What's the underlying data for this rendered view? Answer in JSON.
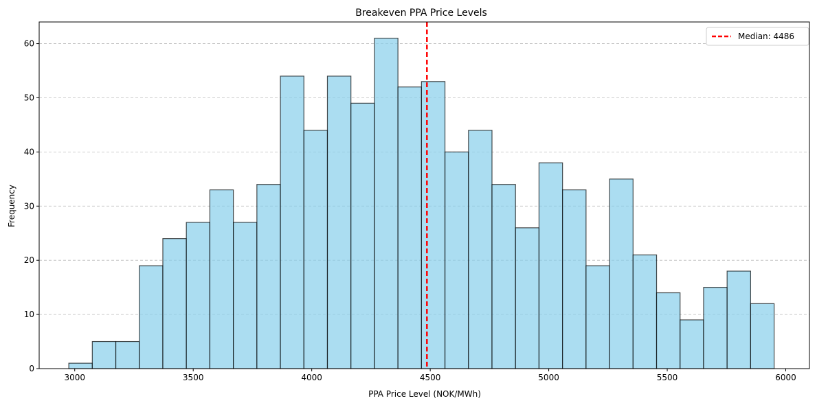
{
  "chart_data": {
    "type": "bar",
    "title": "Breakeven PPA Price Levels",
    "xlabel": "PPA Price Level (NOK/MWh)",
    "ylabel": "Frequency",
    "xlim": [
      2850,
      6100
    ],
    "ylim": [
      0,
      64
    ],
    "xticks": [
      3000,
      3500,
      4000,
      4500,
      5000,
      5500,
      6000
    ],
    "yticks": [
      0,
      10,
      20,
      30,
      40,
      50,
      60
    ],
    "grid": "y-dashed",
    "legend": {
      "position": "top-right",
      "label": "Median: 4486"
    },
    "median": 4486,
    "bin_start": 2975,
    "bin_width": 99.2,
    "counts": [
      1,
      5,
      5,
      19,
      24,
      27,
      33,
      27,
      34,
      54,
      44,
      54,
      49,
      61,
      52,
      53,
      40,
      44,
      34,
      26,
      38,
      33,
      19,
      35,
      21,
      14,
      9,
      15,
      18,
      12
    ],
    "colors": {
      "bar_fill": "#87ceeb",
      "bar_edge": "#000000",
      "median_line": "#ff0000"
    }
  }
}
